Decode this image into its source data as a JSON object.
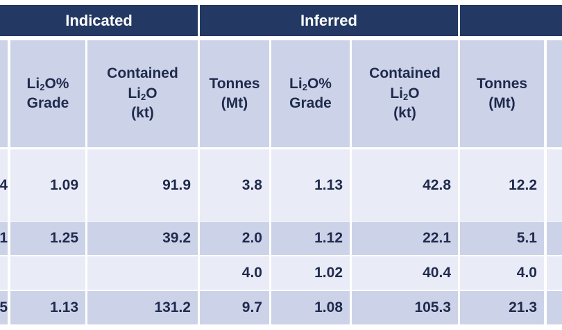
{
  "groups": {
    "indicated": "Indicated",
    "inferred": "Inferred"
  },
  "subheaders": {
    "li2o_grade": [
      "Li",
      "2",
      "O%",
      "Grade"
    ],
    "contained_li2o": [
      "Contained",
      "Li",
      "2",
      "O",
      "(kt)"
    ],
    "tonnes": [
      "Tonnes",
      "(Mt)"
    ]
  },
  "rows": [
    {
      "partial": "4",
      "ind_grade": "1.09",
      "ind_contained": "91.9",
      "inf_tonnes": "3.8",
      "inf_grade": "1.13",
      "inf_contained": "42.8",
      "tonnes": "12.2"
    },
    {
      "partial": "1",
      "ind_grade": "1.25",
      "ind_contained": "39.2",
      "inf_tonnes": "2.0",
      "inf_grade": "1.12",
      "inf_contained": "22.1",
      "tonnes": "5.1"
    },
    {
      "partial": "",
      "ind_grade": "",
      "ind_contained": "",
      "inf_tonnes": "4.0",
      "inf_grade": "1.02",
      "inf_contained": "40.4",
      "tonnes": "4.0"
    },
    {
      "partial": "5",
      "ind_grade": "1.13",
      "ind_contained": "131.2",
      "inf_tonnes": "9.7",
      "inf_grade": "1.08",
      "inf_contained": "105.3",
      "tonnes": "21.3"
    }
  ]
}
